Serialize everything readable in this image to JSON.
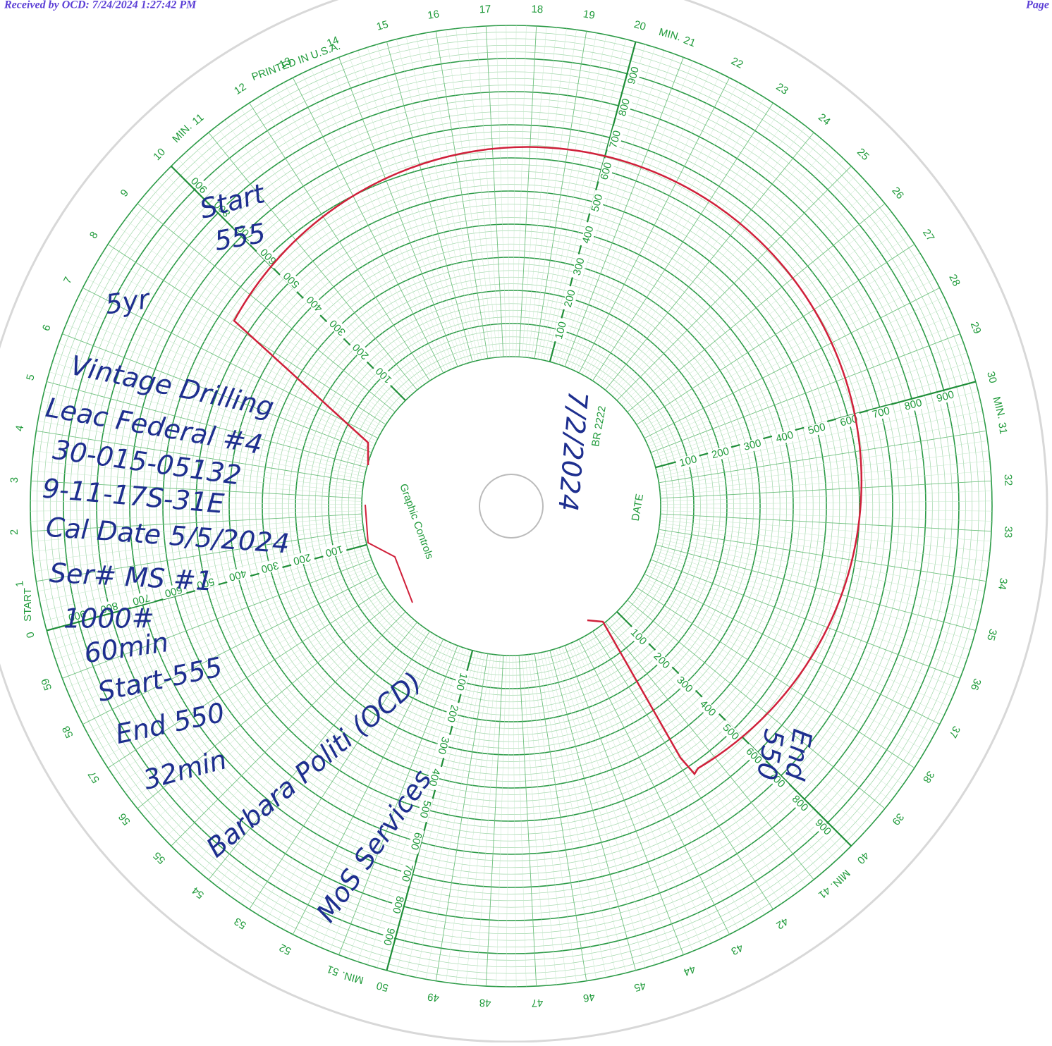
{
  "header": {
    "received": "Received by OCD: 7/24/2024 1:27:42 PM",
    "page": "Page"
  },
  "chart_labels": {
    "minutes": [
      0,
      1,
      2,
      3,
      4,
      5,
      6,
      7,
      8,
      9,
      10,
      11,
      12,
      13,
      14,
      15,
      16,
      17,
      18,
      19,
      20,
      21,
      22,
      23,
      24,
      25,
      26,
      27,
      28,
      29,
      30,
      31,
      32,
      33,
      34,
      35,
      36,
      37,
      38,
      39,
      40,
      41,
      42,
      43,
      44,
      45,
      46,
      47,
      48,
      49,
      50,
      51,
      52,
      53,
      54,
      55,
      56,
      57,
      58,
      59
    ],
    "min_suffix": "MIN.",
    "pressure": [
      100,
      200,
      300,
      400,
      500,
      600,
      700,
      800,
      900
    ],
    "start": "START",
    "printed": "PRINTED IN U.S.A.",
    "date": "DATE",
    "part_no": "BR 2222",
    "brand": "Graphic Controls"
  },
  "handwritten": {
    "start_top": "Start",
    "start_top_value": "555",
    "years": "5yr",
    "company": "Vintage Drilling",
    "well": "Leac Federal #4",
    "api": "30-015-05132",
    "location": "9-11-17S-31E",
    "cal_date": "Cal Date 5/5/2024",
    "serial": "Ser# MS #1",
    "range": "1000#",
    "duration": "60min",
    "start": "Start-555",
    "end": "End 550",
    "elapsed": "32min",
    "date": "7/2/2024",
    "end_right": "End",
    "end_right_value": "550",
    "signature": "Barbara Politi (OCD)",
    "service": "MoS Services"
  }
}
